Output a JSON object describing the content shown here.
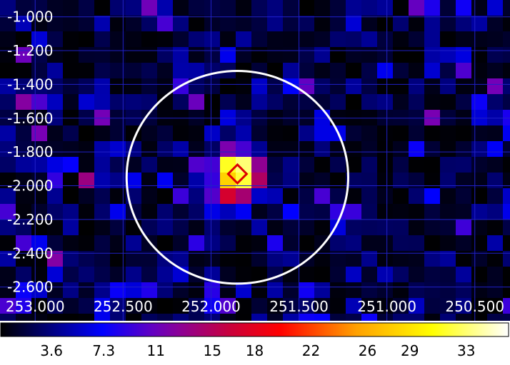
{
  "chart_data": {
    "type": "heatmap",
    "title": "",
    "xlabel": "",
    "ylabel": "",
    "x_ticks": [
      "253.000",
      "252.500",
      "252.000",
      "251.500",
      "251.000",
      "250.500"
    ],
    "x_tick_values": [
      253.0,
      252.5,
      252.0,
      251.5,
      251.0,
      250.5
    ],
    "xlim": [
      253.2,
      250.3
    ],
    "y_ticks": [
      "-1.000",
      "-1.200",
      "-1.400",
      "-1.600",
      "-1.800",
      "-2.000",
      "-2.200",
      "-2.400",
      "-2.600"
    ],
    "y_tick_values": [
      -1.0,
      -1.2,
      -1.4,
      -1.6,
      -1.8,
      -2.0,
      -2.2,
      -2.4,
      -2.6
    ],
    "ylim": [
      -2.8,
      -0.9
    ],
    "grid": true,
    "colormap": "heat (black-blue-red-yellow-white)",
    "colorbar": {
      "orientation": "horizontal",
      "placement": "bottom",
      "ticks": [
        "3.6",
        "7.3",
        "11",
        "15",
        "18",
        "22",
        "26",
        "29",
        "33"
      ],
      "tick_values": [
        3.6,
        7.3,
        11,
        15,
        18,
        22,
        26,
        29,
        33
      ],
      "range": [
        0,
        36
      ]
    },
    "peak": {
      "x": 251.85,
      "y": -1.93,
      "value": 36
    },
    "region_circle": {
      "center_x": 251.85,
      "center_y": -1.95,
      "radius_deg": 0.63,
      "color": "#ffffff"
    },
    "source_marker": {
      "shape": "diamond",
      "x": 251.85,
      "y": -1.93,
      "color": "#dd0000"
    },
    "grid_color": "#2020c8"
  }
}
